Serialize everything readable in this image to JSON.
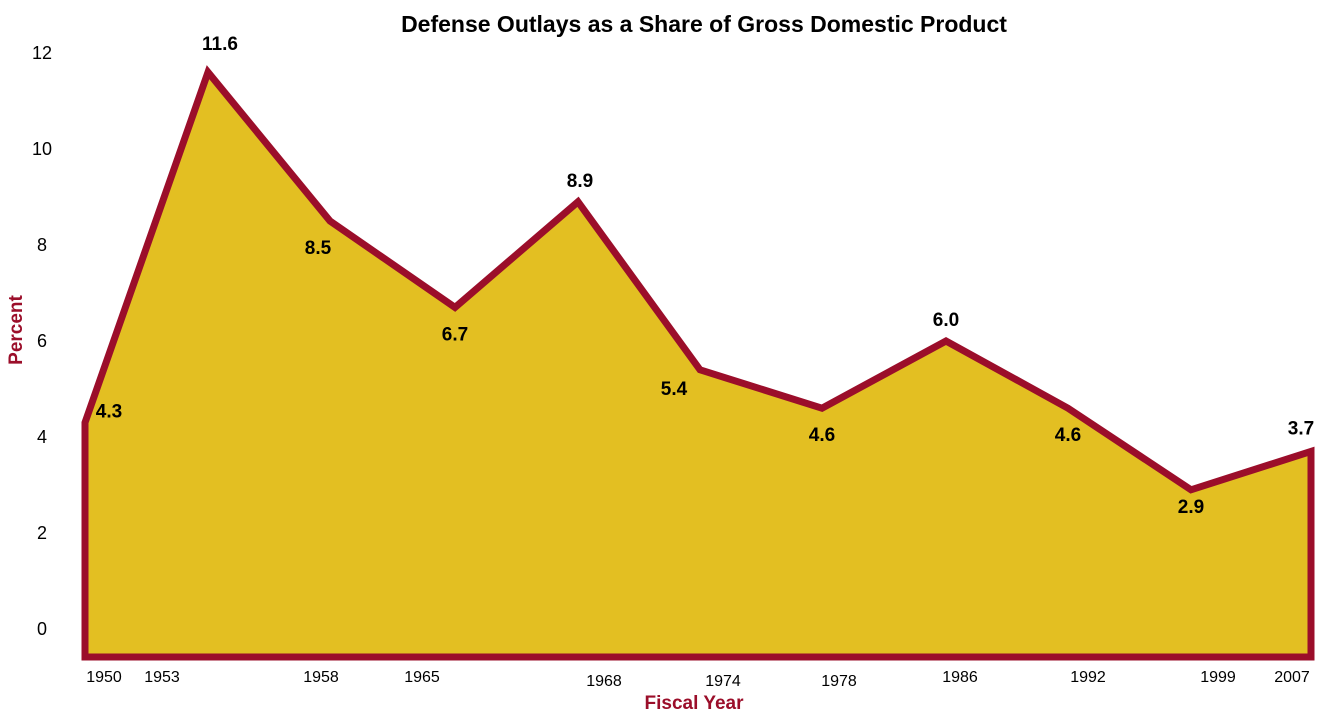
{
  "chart_data": {
    "type": "area",
    "title": "Defense Outlays as a Share of Gross Domestic Product",
    "xlabel": "Fiscal Year",
    "ylabel": "Percent",
    "x_tick_labels": [
      "1950",
      "1953",
      "1958",
      "1965",
      "1968",
      "1974",
      "1978",
      "1986",
      "1992",
      "1999",
      "2007"
    ],
    "y_ticks": [
      "0",
      "2",
      "4",
      "6",
      "8",
      "10",
      "12"
    ],
    "ylim": [
      0,
      12
    ],
    "grid": false,
    "legend": "none",
    "colors": {
      "fill": "#E3BF22",
      "line": "#9B0E2A",
      "axis_title": "#9B0E2A"
    },
    "points": [
      {
        "x": 1950,
        "y": 4.3,
        "label": "4.3"
      },
      {
        "x": 1953,
        "y": 11.6,
        "label": "11.6"
      },
      {
        "x": 1958,
        "y": 8.5,
        "label": "8.5"
      },
      {
        "x": 1965,
        "y": 6.7,
        "label": "6.7"
      },
      {
        "x": 1968,
        "y": 8.9,
        "label": "8.9"
      },
      {
        "x": 1974,
        "y": 5.4,
        "label": "5.4"
      },
      {
        "x": 1978,
        "y": 4.6,
        "label": "4.6"
      },
      {
        "x": 1986,
        "y": 6.0,
        "label": "6.0"
      },
      {
        "x": 1992,
        "y": 4.6,
        "label": "4.6"
      },
      {
        "x": 1999,
        "y": 2.9,
        "label": "2.9"
      },
      {
        "x": 2007,
        "y": 3.7,
        "label": "3.7"
      }
    ]
  }
}
